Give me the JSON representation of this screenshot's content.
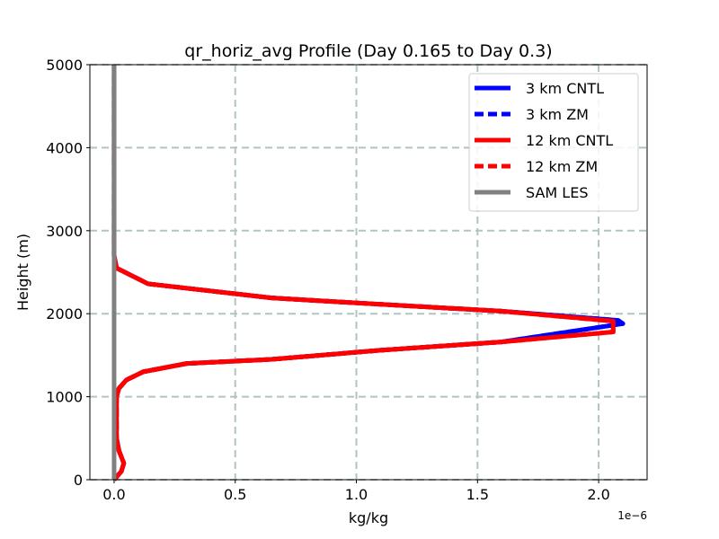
{
  "chart_data": {
    "type": "line",
    "title": "qr_horiz_avg Profile (Day 0.165 to Day 0.3)",
    "xlabel": "kg/kg",
    "ylabel": "Height (m)",
    "x_offset_label": "1e−6",
    "x_scale": 1e-06,
    "xlim": [
      -0.1,
      2.2
    ],
    "ylim": [
      0,
      5000
    ],
    "xticks": [
      0.0,
      0.5,
      1.0,
      1.5,
      2.0
    ],
    "xtick_labels": [
      "0.0",
      "0.5",
      "1.0",
      "1.5",
      "2.0"
    ],
    "yticks": [
      0,
      1000,
      2000,
      3000,
      4000,
      5000
    ],
    "ytick_labels": [
      "0",
      "1000",
      "2000",
      "3000",
      "4000",
      "5000"
    ],
    "grid": true,
    "legend_position": "top-right",
    "series": [
      {
        "name": "3 km CNTL",
        "color": "#0000ff",
        "dash": "solid",
        "x": [
          0.0,
          0.03,
          0.04,
          0.02,
          0.01,
          0.01,
          0.01,
          0.02,
          0.05,
          0.12,
          0.3,
          0.65,
          1.1,
          1.6,
          2.1,
          2.08,
          1.6,
          1.0,
          0.65,
          0.14,
          0.01,
          0.0,
          0.0
        ],
        "y": [
          0,
          100,
          200,
          350,
          500,
          800,
          1000,
          1100,
          1200,
          1300,
          1400,
          1450,
          1560,
          1660,
          1880,
          1920,
          2030,
          2130,
          2190,
          2360,
          2550,
          2700,
          5000
        ]
      },
      {
        "name": "3 km ZM",
        "color": "#0000ff",
        "dash": "dashed",
        "x": [
          0.0,
          0.03,
          0.04,
          0.02,
          0.01,
          0.01,
          0.01,
          0.02,
          0.05,
          0.12,
          0.3,
          0.65,
          1.1,
          1.6,
          2.1,
          2.08,
          1.6,
          1.0,
          0.65,
          0.14,
          0.01,
          0.0,
          0.0
        ],
        "y": [
          0,
          100,
          200,
          350,
          500,
          800,
          1000,
          1100,
          1200,
          1300,
          1400,
          1450,
          1560,
          1660,
          1880,
          1920,
          2030,
          2130,
          2190,
          2360,
          2550,
          2700,
          5000
        ]
      },
      {
        "name": "12 km CNTL",
        "color": "#ff0000",
        "dash": "solid",
        "x": [
          0.0,
          0.03,
          0.04,
          0.02,
          0.01,
          0.01,
          0.01,
          0.02,
          0.05,
          0.12,
          0.3,
          0.65,
          1.1,
          1.6,
          2.06,
          2.06,
          1.6,
          1.0,
          0.65,
          0.14,
          0.01,
          0.0,
          0.0
        ],
        "y": [
          0,
          100,
          200,
          350,
          500,
          800,
          1000,
          1100,
          1200,
          1300,
          1400,
          1450,
          1560,
          1660,
          1780,
          1910,
          2030,
          2130,
          2190,
          2360,
          2550,
          2700,
          5000
        ]
      },
      {
        "name": "12 km ZM",
        "color": "#ff0000",
        "dash": "dashed",
        "x": [
          0.0,
          0.03,
          0.04,
          0.02,
          0.01,
          0.01,
          0.01,
          0.02,
          0.05,
          0.12,
          0.3,
          0.65,
          1.1,
          1.6,
          2.06,
          2.06,
          1.6,
          1.0,
          0.65,
          0.14,
          0.01,
          0.0,
          0.0
        ],
        "y": [
          0,
          100,
          200,
          350,
          500,
          800,
          1000,
          1100,
          1200,
          1300,
          1400,
          1450,
          1560,
          1660,
          1780,
          1910,
          2030,
          2130,
          2190,
          2360,
          2550,
          2700,
          5000
        ]
      },
      {
        "name": "SAM LES",
        "color": "#808080",
        "dash": "solid",
        "x": [
          0.0,
          0.0,
          0.0,
          0.0
        ],
        "y": [
          0,
          2000,
          4000,
          5000
        ]
      }
    ]
  }
}
